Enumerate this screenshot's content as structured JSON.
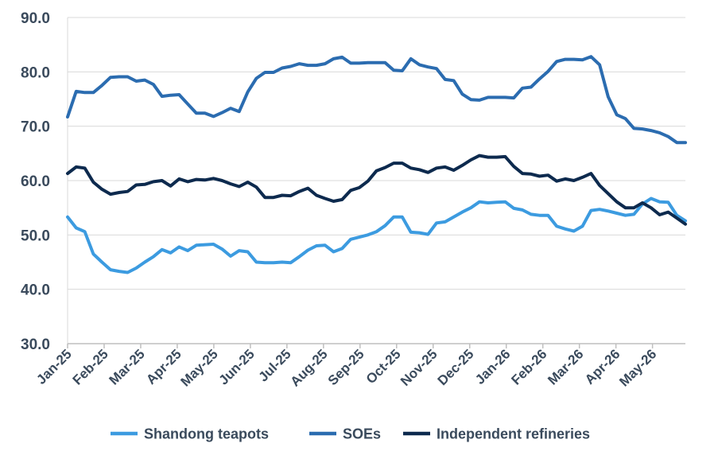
{
  "chart_data": {
    "type": "line",
    "title": "",
    "xlabel": "",
    "ylabel": "",
    "ylim": [
      30,
      90
    ],
    "yticks": [
      "30.0",
      "40.0",
      "50.0",
      "60.0",
      "70.0",
      "80.0",
      "90.0"
    ],
    "xticks": [
      "Jan-25",
      "Feb-25",
      "Mar-25",
      "Apr-25",
      "May-25",
      "Jun-25",
      "Jul-25",
      "Aug-25",
      "Sep-25",
      "Oct-25",
      "Nov-25",
      "Dec-25",
      "Jan-26",
      "Feb-26",
      "Mar-26",
      "Apr-26",
      "May-26"
    ],
    "grid": "horizontal",
    "legend_position": "bottom",
    "series": [
      {
        "name": "Shandong teapots",
        "color": "#3c9be0",
        "values": [
          53.3,
          51.3,
          50.6,
          46.5,
          45.0,
          43.6,
          43.3,
          43.1,
          43.9,
          45.0,
          46.0,
          47.3,
          46.7,
          47.8,
          47.1,
          48.1,
          48.2,
          48.3,
          47.4,
          46.1,
          47.1,
          46.9,
          45.0,
          44.9,
          44.9,
          45.0,
          44.9,
          46.0,
          47.2,
          48.0,
          48.1,
          46.9,
          47.5,
          49.2,
          49.6,
          50.0,
          50.6,
          51.7,
          53.3,
          53.3,
          50.5,
          50.4,
          50.1,
          52.2,
          52.4,
          53.3,
          54.2,
          55.0,
          56.1,
          55.9,
          56.0,
          56.1,
          54.9,
          54.6,
          53.8,
          53.6,
          53.6,
          51.6,
          51.1,
          50.7,
          51.6,
          54.5,
          54.7,
          54.4,
          54.0,
          53.6,
          53.8,
          55.7,
          56.7,
          56.1,
          56.0,
          53.6,
          52.6
        ]
      },
      {
        "name": "SOEs",
        "color": "#2b6cb0",
        "values": [
          71.7,
          76.4,
          76.2,
          76.2,
          77.5,
          79.0,
          79.1,
          79.1,
          78.3,
          78.5,
          77.7,
          75.5,
          75.7,
          75.8,
          74.1,
          72.4,
          72.4,
          71.8,
          72.5,
          73.3,
          72.7,
          76.3,
          78.8,
          79.9,
          79.9,
          80.7,
          81.0,
          81.5,
          81.2,
          81.2,
          81.5,
          82.4,
          82.7,
          81.6,
          81.6,
          81.7,
          81.7,
          81.7,
          80.3,
          80.2,
          82.4,
          81.3,
          80.9,
          80.6,
          78.6,
          78.4,
          75.9,
          74.9,
          74.8,
          75.3,
          75.3,
          75.3,
          75.2,
          77.0,
          77.2,
          78.7,
          80.1,
          81.9,
          82.3,
          82.3,
          82.2,
          82.8,
          81.3,
          75.4,
          72.1,
          71.4,
          69.6,
          69.5,
          69.2,
          68.8,
          68.1,
          67.0,
          67.0
        ]
      },
      {
        "name": "Independent refineries",
        "color": "#0d2a4e",
        "values": [
          61.3,
          62.5,
          62.3,
          59.7,
          58.4,
          57.5,
          57.8,
          58.0,
          59.2,
          59.3,
          59.8,
          60.0,
          59.0,
          60.3,
          59.8,
          60.2,
          60.1,
          60.4,
          60.0,
          59.4,
          58.9,
          59.7,
          58.8,
          56.9,
          56.9,
          57.3,
          57.2,
          58.0,
          58.6,
          57.3,
          56.7,
          56.2,
          56.5,
          58.2,
          58.7,
          59.9,
          61.8,
          62.4,
          63.2,
          63.2,
          62.3,
          62.0,
          61.5,
          62.3,
          62.5,
          61.9,
          62.8,
          63.8,
          64.6,
          64.3,
          64.3,
          64.4,
          62.6,
          61.3,
          61.2,
          60.8,
          61.0,
          59.9,
          60.3,
          60.0,
          60.6,
          61.3,
          59.1,
          57.6,
          56.1,
          55.0,
          55.0,
          55.9,
          55.0,
          53.7,
          54.2,
          53.1,
          52.0
        ]
      }
    ]
  }
}
